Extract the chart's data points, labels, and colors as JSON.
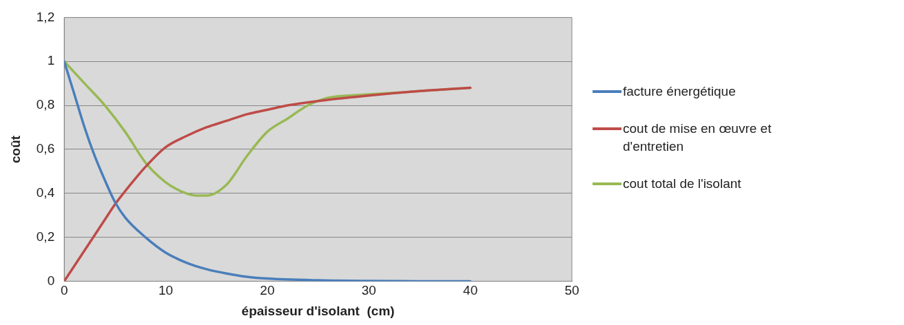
{
  "chart_data": {
    "type": "line",
    "xlabel": "épaisseur d'isolant  (cm)",
    "ylabel": "coût",
    "xlim": [
      0,
      50
    ],
    "xticks": [
      0,
      10,
      20,
      30,
      40,
      50
    ],
    "ylim": [
      0,
      1.2
    ],
    "yticks": [
      0,
      {
        "value": 0.2,
        "label": "0,2"
      },
      {
        "value": 0.4,
        "label": "0,4"
      },
      {
        "value": 0.6,
        "label": "0,6"
      },
      {
        "value": 0.8,
        "label": "0,8"
      },
      1,
      {
        "value": 1.2,
        "label": "1,2"
      }
    ],
    "grid": "y",
    "legend": "right",
    "marker": "none",
    "line_style": "solid",
    "series": [
      {
        "name": "facture énergétique",
        "color": "#4a7ebb",
        "x": [
          0,
          1,
          2,
          3,
          4,
          5,
          6,
          8,
          10,
          12,
          14,
          16,
          18,
          20,
          25,
          30,
          35,
          40
        ],
        "values": [
          1,
          0.85,
          0.7,
          0.57,
          0.46,
          0.36,
          0.29,
          0.2,
          0.13,
          0.085,
          0.055,
          0.035,
          0.02,
          0.012,
          0.004,
          0.001,
          0,
          0
        ]
      },
      {
        "name": "cout de mise en œuvre et d'entretien",
        "color": "#be4b48",
        "x": [
          0,
          2,
          4,
          5,
          6,
          8,
          10,
          12,
          14,
          16,
          18,
          20,
          22,
          25,
          30,
          35,
          40
        ],
        "values": [
          0,
          0.14,
          0.28,
          0.35,
          0.41,
          0.52,
          0.61,
          0.66,
          0.7,
          0.73,
          0.76,
          0.78,
          0.8,
          0.82,
          0.845,
          0.865,
          0.88
        ]
      },
      {
        "name": "cout total de l'isolant",
        "color": "#98b954",
        "x": [
          0,
          2,
          4,
          6,
          8,
          10,
          12,
          13,
          14,
          16,
          18,
          20,
          22,
          24,
          26,
          28,
          30,
          35,
          40
        ],
        "values": [
          1,
          0.9,
          0.8,
          0.68,
          0.54,
          0.45,
          0.4,
          0.39,
          0.39,
          0.44,
          0.57,
          0.68,
          0.74,
          0.8,
          0.835,
          0.845,
          0.85,
          0.865,
          0.88
        ]
      }
    ]
  }
}
